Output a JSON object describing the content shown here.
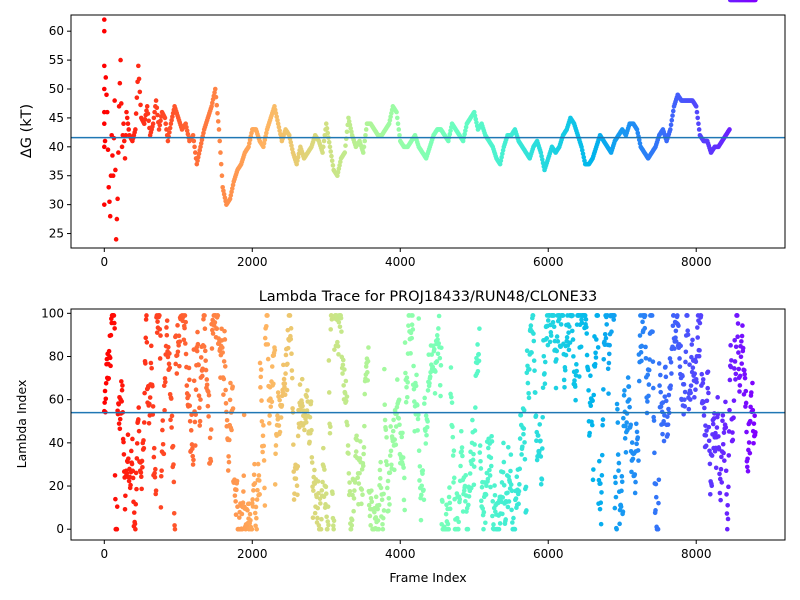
{
  "chart_data": [
    {
      "type": "scatter",
      "title": "",
      "xlabel": "",
      "ylabel": "ΔG (kT)",
      "xlim": [
        -450,
        9200
      ],
      "ylim": [
        22.5,
        62.8
      ],
      "xticks": [
        0,
        2000,
        4000,
        6000,
        8000
      ],
      "xtick_labels": [
        "0",
        "2000",
        "4000",
        "6000",
        "8000"
      ],
      "yticks": [
        25,
        30,
        35,
        40,
        45,
        50,
        55,
        60
      ],
      "ytick_labels": [
        "25",
        "30",
        "35",
        "40",
        "45",
        "50",
        "55",
        "60"
      ],
      "hline": 41.6,
      "hline_color": "#1f77b4",
      "colormap": "rainbow (red at frame 0 → purple at last frame)",
      "x_max_frame": 8800,
      "points_x": [
        0,
        0,
        0,
        0,
        0,
        0,
        0,
        0,
        20,
        40,
        60,
        80,
        100,
        120,
        140,
        160,
        180,
        200,
        220,
        240,
        260,
        280,
        300,
        340,
        380,
        420,
        460,
        500,
        540,
        580,
        620,
        660,
        700,
        740,
        780,
        820,
        860,
        900,
        950,
        1000,
        1050,
        1100,
        1150,
        1200,
        1250,
        1300,
        1350,
        1400,
        1450,
        1500,
        1550,
        1600,
        1650,
        1700,
        1750,
        1800,
        1850,
        1900,
        1950,
        2000,
        2050,
        2100,
        2150,
        2200,
        2250,
        2300,
        2350,
        2400,
        2450,
        2500,
        2550,
        2600,
        2650,
        2700,
        2750,
        2800,
        2850,
        2900,
        2950,
        3000,
        3050,
        3100,
        3150,
        3200,
        3250,
        3300,
        3350,
        3400,
        3450,
        3500,
        3550,
        3600,
        3650,
        3700,
        3750,
        3800,
        3850,
        3900,
        3950,
        4000,
        4050,
        4100,
        4150,
        4200,
        4250,
        4300,
        4350,
        4400,
        4450,
        4500,
        4550,
        4600,
        4650,
        4700,
        4750,
        4800,
        4850,
        4900,
        4950,
        5000,
        5050,
        5100,
        5150,
        5200,
        5250,
        5300,
        5350,
        5400,
        5450,
        5500,
        5550,
        5600,
        5650,
        5700,
        5750,
        5800,
        5850,
        5900,
        5950,
        6000,
        6050,
        6100,
        6150,
        6200,
        6250,
        6300,
        6350,
        6400,
        6450,
        6500,
        6550,
        6600,
        6650,
        6700,
        6750,
        6800,
        6850,
        6900,
        6950,
        7000,
        7050,
        7100,
        7150,
        7200,
        7250,
        7300,
        7350,
        7400,
        7450,
        7500,
        7550,
        7600,
        7650,
        7700,
        7750,
        7800,
        7850,
        7900,
        7950,
        8000,
        8050,
        8100,
        8150,
        8200,
        8250,
        8300,
        8350,
        8400,
        8450,
        8500,
        8550,
        8600,
        8650,
        8700,
        8750,
        8800
      ],
      "points_y": [
        62,
        60,
        54,
        50,
        46,
        44,
        40,
        30,
        52,
        46,
        33,
        28,
        42,
        35,
        48,
        24,
        31,
        47,
        55,
        40,
        44,
        38,
        46,
        42,
        41,
        43,
        54,
        45,
        44,
        47,
        42,
        44,
        48,
        43,
        46,
        45,
        41,
        44,
        47,
        45,
        43,
        44,
        41,
        42,
        37,
        40,
        43,
        45,
        47,
        50,
        43,
        33,
        30,
        31,
        34,
        36,
        37,
        39,
        40,
        43,
        43,
        41,
        40,
        43,
        45,
        47,
        44,
        41,
        43,
        42,
        39,
        37,
        40,
        38,
        39,
        40,
        42,
        41,
        39,
        44,
        40,
        36,
        35,
        38,
        39,
        45,
        42,
        40,
        41,
        39,
        44,
        44,
        43,
        42,
        42,
        43,
        44,
        47,
        46,
        41,
        40,
        40,
        41,
        42,
        40,
        39,
        38,
        40,
        42,
        43,
        43,
        42,
        41,
        44,
        43,
        42,
        41,
        44,
        45,
        46,
        43,
        44,
        42,
        41,
        40,
        38,
        37,
        40,
        42,
        42,
        43,
        41,
        40,
        39,
        38,
        40,
        41,
        39,
        36,
        38,
        40,
        39,
        40,
        42,
        43,
        45,
        44,
        42,
        40,
        37,
        37,
        38,
        40,
        42,
        41,
        40,
        39,
        41,
        42,
        43,
        42,
        44,
        44,
        43,
        40,
        39,
        38,
        39,
        40,
        42,
        43,
        41,
        43,
        47,
        49,
        48,
        48,
        48,
        48,
        47,
        42,
        41,
        41,
        39,
        40,
        40,
        41,
        42,
        43
      ]
    },
    {
      "type": "scatter",
      "title": "Lambda Trace for PROJ18433/RUN48/CLONE33",
      "xlabel": "Frame Index",
      "ylabel": "Lambda Index",
      "xlim": [
        -450,
        9200
      ],
      "ylim": [
        -5,
        102
      ],
      "xticks": [
        0,
        2000,
        4000,
        6000,
        8000
      ],
      "xtick_labels": [
        "0",
        "2000",
        "4000",
        "6000",
        "8000"
      ],
      "yticks": [
        0,
        20,
        40,
        60,
        80,
        100
      ],
      "ytick_labels": [
        "0",
        "20",
        "40",
        "60",
        "80",
        "100"
      ],
      "hline": 54,
      "hline_color": "#1f77b4",
      "colormap": "rainbow (red at frame 0 → purple at last frame)",
      "x_max_frame": 8800,
      "lambda_range": [
        0,
        99
      ],
      "note_series": "dense per-frame lambda trace sampled across frames 0–8800"
    }
  ]
}
